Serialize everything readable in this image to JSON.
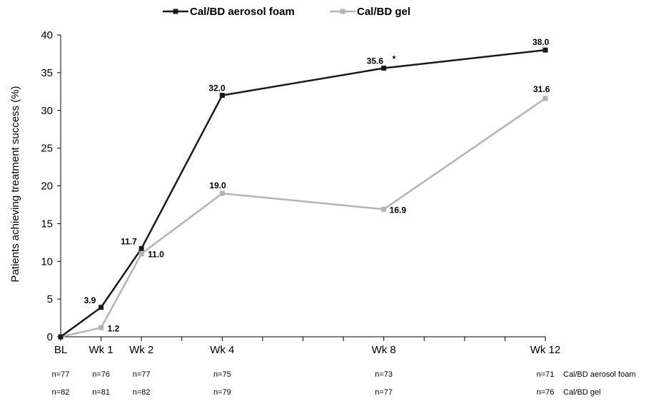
{
  "chart_data": {
    "type": "line",
    "ylabel": "Patients achieving treatment success (%)",
    "ylim": [
      0,
      40
    ],
    "yticks": [
      0,
      5,
      10,
      15,
      20,
      25,
      30,
      35,
      40
    ],
    "x_scale": "weeks",
    "categories": [
      "BL",
      "Wk 1",
      "Wk 2",
      "Wk 4",
      "Wk 8",
      "Wk 12"
    ],
    "x": [
      0,
      1,
      2,
      4,
      8,
      12
    ],
    "legend_position": "top-center",
    "series": [
      {
        "name": "Cal/BD aerosol foam",
        "color": "#1a1a1a",
        "values": [
          0,
          3.9,
          11.7,
          32.0,
          35.6,
          38.0
        ],
        "labels": [
          "",
          "3.9",
          "11.7",
          "32.0",
          "35.6",
          "38.0"
        ],
        "annotation": {
          "index": 4,
          "text": "*"
        },
        "n": [
          "n=77",
          "n=76",
          "n=77",
          "n=75",
          "n=73",
          "n=71"
        ]
      },
      {
        "name": "Cal/BD gel",
        "color": "#b4b4b4",
        "values": [
          0,
          1.2,
          11.0,
          19.0,
          16.9,
          31.6
        ],
        "labels": [
          "",
          "1.2",
          "11.0",
          "19.0",
          "16.9",
          "31.6"
        ],
        "n": [
          "n=82",
          "n=81",
          "n=82",
          "n=79",
          "n=77",
          "n=76"
        ]
      }
    ]
  }
}
